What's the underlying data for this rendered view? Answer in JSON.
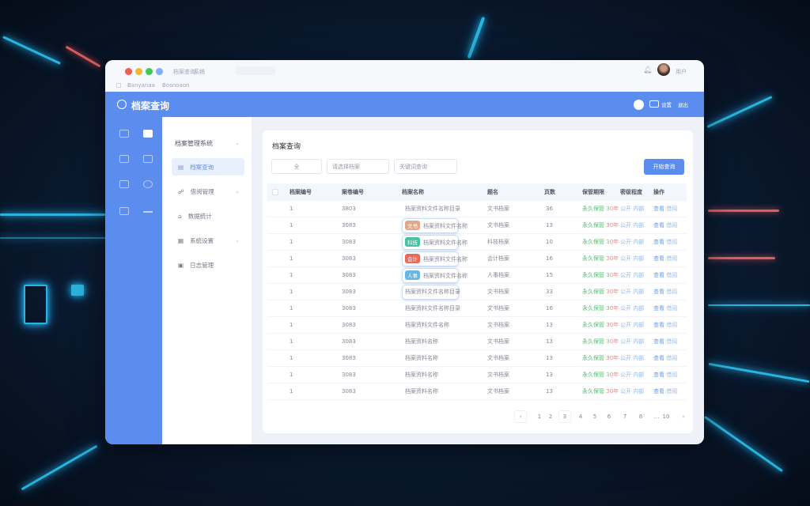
{
  "window": {
    "tab_title": "档案查询",
    "tab_sub": "系统",
    "address": "",
    "bookmarks": [
      "Banyanaa",
      "Bosnoaon"
    ],
    "user_name": "用户"
  },
  "header": {
    "title": "档案查询",
    "actions": [
      "消息",
      "设置",
      "退出"
    ]
  },
  "sidebar": {
    "items": [
      {
        "label": "档案管理系统",
        "icon": "folder-icon",
        "expand": true
      },
      {
        "label": "档案查询",
        "icon": "list-icon",
        "active": true
      },
      {
        "label": "借阅管理",
        "icon": "users-icon",
        "expand": true
      },
      {
        "label": "数据统计",
        "icon": "chart-icon"
      },
      {
        "label": "系统设置",
        "icon": "settings-icon",
        "expand": true
      },
      {
        "label": "日志管理",
        "icon": "log-icon"
      }
    ]
  },
  "content": {
    "title": "档案查询",
    "filters": [
      {
        "value": "全",
        "placeholder": ""
      },
      {
        "value": "",
        "placeholder": "请选择档案"
      },
      {
        "value": "",
        "placeholder": "关键词查询"
      }
    ],
    "search_button": "开始查询"
  },
  "table": {
    "columns": [
      "档案编号",
      "案卷编号",
      "档案名称",
      "题名",
      "页数",
      "保管期限",
      "密级程度",
      "操作"
    ],
    "rows": [
      {
        "no": "1",
        "code": "3803",
        "name": "档案资料文件名称目录",
        "tag": "",
        "tag_color": "",
        "boxed": false,
        "title": "文书档案",
        "pages": "36",
        "period": [
          "永久保管",
          "30年"
        ],
        "secret": [
          "公开",
          "内部"
        ],
        "ops": [
          "查看",
          "借阅"
        ]
      },
      {
        "no": "1",
        "code": "3083",
        "name": "档案资料文件名称",
        "tag": "文书",
        "tag_color": "#e0a98a",
        "boxed": true,
        "title": "文书档案",
        "pages": "13",
        "period": [
          "永久保管",
          "30年"
        ],
        "secret": [
          "公开",
          "内部"
        ],
        "ops": [
          "查看",
          "借阅"
        ]
      },
      {
        "no": "1",
        "code": "3083",
        "name": "档案资料文件名称",
        "tag": "科技",
        "tag_color": "#45c2a2",
        "boxed": true,
        "title": "科技档案",
        "pages": "10",
        "period": [
          "永久保管",
          "30年"
        ],
        "secret": [
          "公开",
          "内部"
        ],
        "ops": [
          "查看",
          "借阅"
        ]
      },
      {
        "no": "1",
        "code": "3083",
        "name": "档案资料文件名称",
        "tag": "会计",
        "tag_color": "#e8695a",
        "boxed": true,
        "title": "会计档案",
        "pages": "16",
        "period": [
          "永久保管",
          "30年"
        ],
        "secret": [
          "公开",
          "内部"
        ],
        "ops": [
          "查看",
          "借阅"
        ]
      },
      {
        "no": "1",
        "code": "3083",
        "name": "档案资料文件名称",
        "tag": "人事",
        "tag_color": "#6ab6e0",
        "boxed": true,
        "title": "人事档案",
        "pages": "15",
        "period": [
          "永久保管",
          "30年"
        ],
        "secret": [
          "公开",
          "内部"
        ],
        "ops": [
          "查看",
          "借阅"
        ]
      },
      {
        "no": "1",
        "code": "3083",
        "name": "档案资料文件名称目录",
        "tag": "",
        "tag_color": "",
        "boxed": true,
        "title": "文书档案",
        "pages": "33",
        "period": [
          "永久保管",
          "30年"
        ],
        "secret": [
          "公开",
          "内部"
        ],
        "ops": [
          "查看",
          "借阅"
        ]
      },
      {
        "no": "1",
        "code": "3083",
        "name": "档案资料文件名称目录",
        "tag": "",
        "tag_color": "",
        "boxed": false,
        "title": "文书档案",
        "pages": "16",
        "period": [
          "永久保管",
          "30年"
        ],
        "secret": [
          "公开",
          "内部"
        ],
        "ops": [
          "查看",
          "借阅"
        ]
      },
      {
        "no": "1",
        "code": "3083",
        "name": "档案资料文件名称",
        "tag": "",
        "tag_color": "",
        "boxed": false,
        "title": "文书档案",
        "pages": "13",
        "period": [
          "永久保管",
          "30年"
        ],
        "secret": [
          "公开",
          "内部"
        ],
        "ops": [
          "查看",
          "借阅"
        ]
      },
      {
        "no": "1",
        "code": "3083",
        "name": "档案资料名称",
        "tag": "",
        "tag_color": "",
        "boxed": false,
        "title": "文书档案",
        "pages": "13",
        "period": [
          "永久保管",
          "30年"
        ],
        "secret": [
          "公开",
          "内部"
        ],
        "ops": [
          "查看",
          "借阅"
        ]
      },
      {
        "no": "1",
        "code": "3083",
        "name": "档案资料名称",
        "tag": "",
        "tag_color": "",
        "boxed": false,
        "title": "文书档案",
        "pages": "13",
        "period": [
          "永久保管",
          "30年"
        ],
        "secret": [
          "公开",
          "内部"
        ],
        "ops": [
          "查看",
          "借阅"
        ]
      },
      {
        "no": "1",
        "code": "3083",
        "name": "档案资料名称",
        "tag": "",
        "tag_color": "",
        "boxed": false,
        "title": "文书档案",
        "pages": "13",
        "period": [
          "永久保管",
          "30年"
        ],
        "secret": [
          "公开",
          "内部"
        ],
        "ops": [
          "查看",
          "借阅"
        ]
      },
      {
        "no": "1",
        "code": "3083",
        "name": "档案资料名称",
        "tag": "",
        "tag_color": "",
        "boxed": false,
        "title": "文书档案",
        "pages": "13",
        "period": [
          "永久保管",
          "30年"
        ],
        "secret": [
          "公开",
          "内部"
        ],
        "ops": [
          "查看",
          "借阅"
        ]
      }
    ]
  },
  "pagination": {
    "items": [
      "‹",
      "1",
      "2",
      "3",
      "4",
      "5",
      "6",
      "7",
      "8",
      "…",
      "10",
      "›"
    ]
  },
  "colors": {
    "brand": "#5b8def",
    "green": "#4cbf6a",
    "red": "#e98a8a",
    "link": "#6aa0e8"
  }
}
